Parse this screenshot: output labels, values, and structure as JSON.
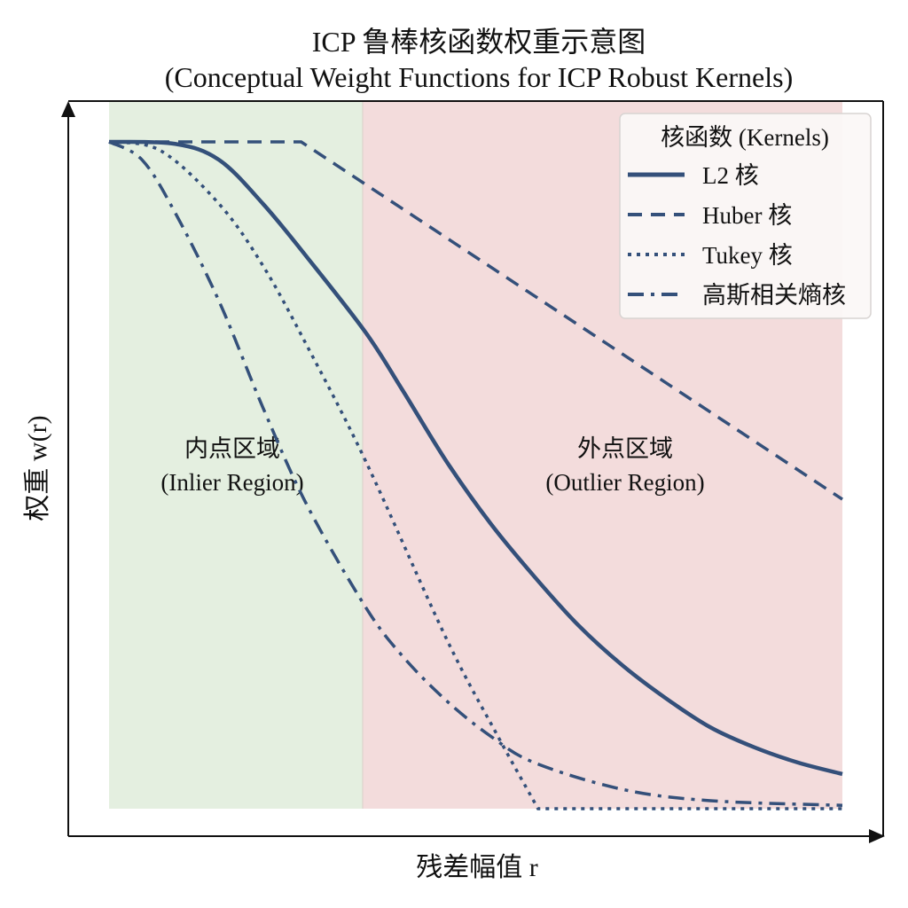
{
  "chart_data": {
    "type": "line",
    "title": "ICP 鲁棒核函数权重示意图",
    "subtitle": "(Conceptual Weight Functions for ICP Robust Kernels)",
    "xlabel": "残差幅值 r",
    "ylabel": "权重 w(r)",
    "xlim": [
      0,
      1
    ],
    "ylim": [
      0,
      1
    ],
    "ticks": "none",
    "grid": false,
    "legend": {
      "title": "核函数 (Kernels)",
      "placement": "top-right"
    },
    "line_color": "#34507a",
    "regions": [
      {
        "label": "内点区域",
        "sublabel": "(Inlier Region)",
        "x_range": [
          0,
          0.346
        ],
        "color": "#e4efe0"
      },
      {
        "label": "外点区域",
        "sublabel": "(Outlier Region)",
        "x_range": [
          0.346,
          1
        ],
        "color": "#f3dcdc"
      }
    ],
    "series": [
      {
        "name": "L2 核",
        "style": "solid",
        "x": [
          0,
          0.09,
          0.15,
          0.21,
          0.27,
          0.35,
          0.4,
          0.46,
          0.52,
          0.58,
          0.64,
          0.7,
          0.76,
          0.82,
          0.88,
          0.94,
          1.0
        ],
        "y": [
          1,
          0.997,
          0.973,
          0.907,
          0.827,
          0.714,
          0.628,
          0.521,
          0.428,
          0.348,
          0.275,
          0.215,
          0.165,
          0.122,
          0.092,
          0.069,
          0.052
        ]
      },
      {
        "name": "Huber 核",
        "style": "dashed",
        "x": [
          0,
          0.262,
          1.0
        ],
        "y": [
          1,
          1,
          0.464
        ]
      },
      {
        "name": "Tukey 核",
        "style": "dotted",
        "x": [
          0,
          0.07,
          0.15,
          0.21,
          0.27,
          0.35,
          0.46,
          0.53,
          0.585,
          1.0
        ],
        "y": [
          1,
          0.987,
          0.907,
          0.814,
          0.694,
          0.521,
          0.255,
          0.109,
          0,
          0
        ]
      },
      {
        "name": "高斯相关熵核",
        "style": "dashdot",
        "x": [
          0,
          0.045,
          0.09,
          0.15,
          0.21,
          0.27,
          0.35,
          0.4,
          0.46,
          0.52,
          0.58,
          0.7,
          0.82,
          1.0
        ],
        "y": [
          1,
          0.973,
          0.894,
          0.761,
          0.601,
          0.455,
          0.302,
          0.229,
          0.162,
          0.109,
          0.069,
          0.029,
          0.012,
          0.005
        ]
      }
    ]
  }
}
